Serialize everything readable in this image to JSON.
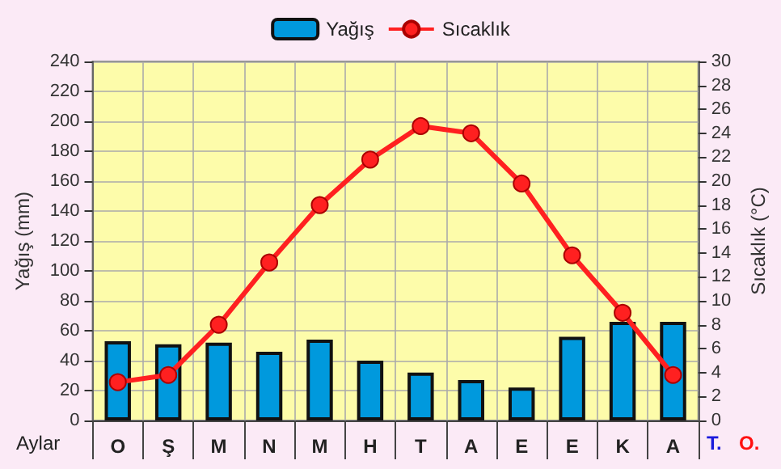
{
  "chart_data": {
    "type": "bar",
    "xlabel": "Aylar",
    "ylabel": "Yağış (mm)",
    "y2label": "Sıcaklık (°C)",
    "categories": [
      "O",
      "Ş",
      "M",
      "N",
      "M",
      "H",
      "T",
      "A",
      "E",
      "E",
      "K",
      "A"
    ],
    "series": [
      {
        "name": "Yağış",
        "color": "#0099dd",
        "values": [
          53,
          51,
          52,
          46,
          54,
          40,
          32,
          27,
          22,
          56,
          66,
          66
        ]
      },
      {
        "name": "Sıcaklık",
        "type": "line",
        "axis": "y2",
        "color": "#ff2020",
        "marker": "circle",
        "values": [
          3.2,
          3.8,
          8,
          13.2,
          18,
          21.8,
          24.6,
          24,
          19.8,
          13.8,
          9,
          3.8
        ]
      }
    ],
    "ylim": [
      0,
      240
    ],
    "yticks": [
      0,
      20,
      40,
      60,
      80,
      100,
      120,
      140,
      160,
      180,
      200,
      220,
      240
    ],
    "y2lim": [
      0,
      30
    ],
    "y2ticks": [
      0,
      2,
      4,
      6,
      8,
      10,
      12,
      14,
      16,
      18,
      20,
      22,
      24,
      26,
      28,
      30
    ],
    "grid": true,
    "legend": "top",
    "annotations": [
      "T.",
      "O."
    ]
  }
}
